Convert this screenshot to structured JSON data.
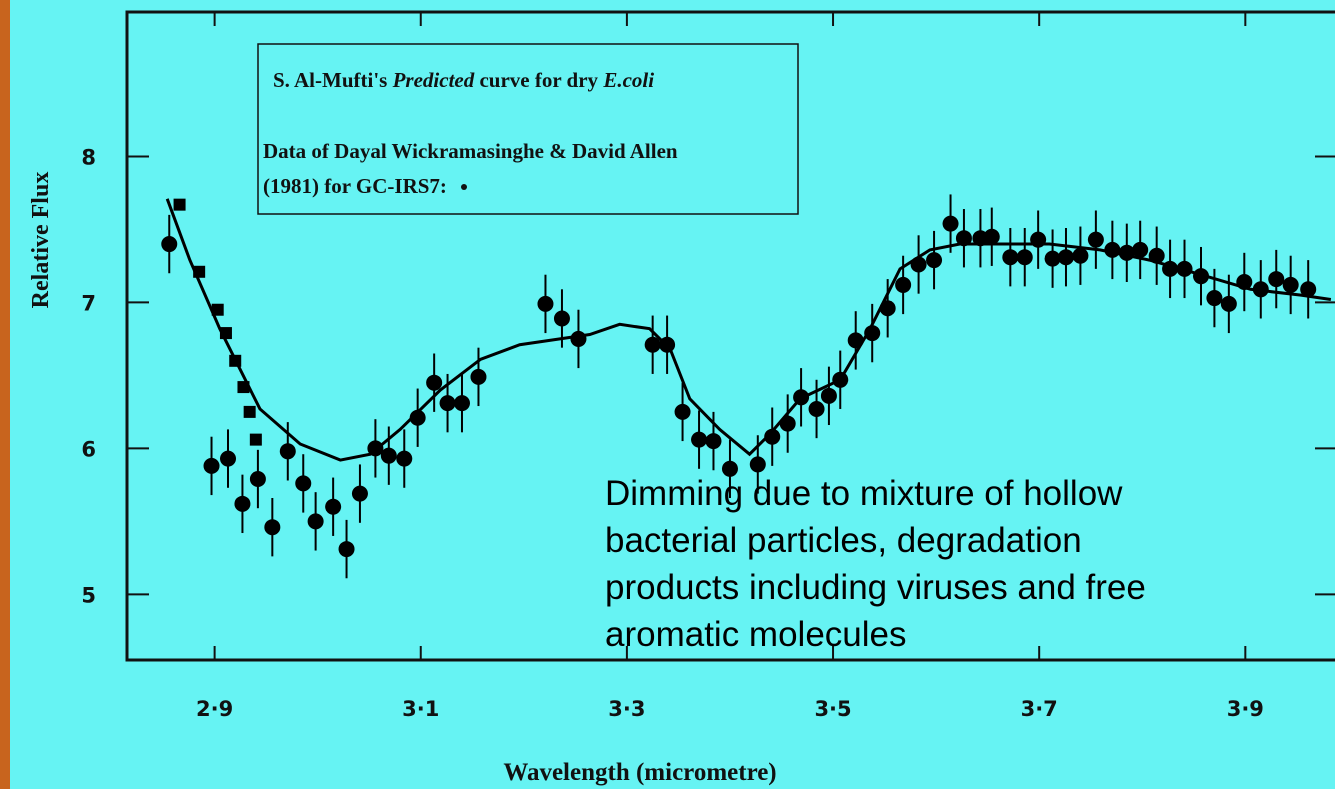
{
  "chart_data": {
    "type": "scatter",
    "xlabel": "Wavelength (micrometre)",
    "ylabel": "Relative Flux",
    "xlim": [
      2.815,
      3.987
    ],
    "ylim": [
      4.55,
      8.99
    ],
    "xticks": [
      {
        "value": 2.9,
        "label": "2·9"
      },
      {
        "value": 3.1,
        "label": "3·1"
      },
      {
        "value": 3.3,
        "label": "3·3"
      },
      {
        "value": 3.5,
        "label": "3·5"
      },
      {
        "value": 3.7,
        "label": "3·7"
      },
      {
        "value": 3.9,
        "label": "3·9"
      }
    ],
    "yticks": [
      5,
      6,
      7,
      8
    ],
    "legend": {
      "curve": [
        "S. Al-Mufti's ",
        "Predicted",
        " curve for dry ",
        "E.coli"
      ],
      "data": [
        "Data of Dayal Wickramasinghe & David Allen",
        "(1981) for GC-IRS7:"
      ]
    },
    "annotation": [
      "Dimming due to mixture of hollow",
      "bacterial particles, degradation",
      "products including viruses and free",
      "aromatic molecules"
    ],
    "series": [
      {
        "type": "line",
        "color": "#000000",
        "x": [
          2.854,
          2.876,
          2.905,
          2.944,
          2.983,
          3.022,
          3.051,
          3.08,
          3.119,
          3.158,
          3.196,
          3.235,
          3.264,
          3.293,
          3.322,
          3.342,
          3.361,
          3.39,
          3.419,
          3.439,
          3.468,
          3.507,
          3.536,
          3.565,
          3.594,
          3.623,
          3.662,
          3.71,
          3.759,
          3.807,
          3.857,
          3.905,
          3.954,
          3.983
        ],
        "values": [
          7.71,
          7.29,
          6.82,
          6.27,
          6.03,
          5.92,
          5.96,
          6.13,
          6.4,
          6.61,
          6.71,
          6.75,
          6.78,
          6.85,
          6.82,
          6.68,
          6.34,
          6.13,
          5.96,
          6.1,
          6.34,
          6.47,
          6.82,
          7.23,
          7.36,
          7.4,
          7.4,
          7.4,
          7.36,
          7.29,
          7.19,
          7.09,
          7.05,
          7.02
        ]
      },
      {
        "type": "scatter",
        "marker": "square",
        "color": "#000000",
        "x": [
          2.866,
          2.885,
          2.903,
          2.911,
          2.92,
          2.928,
          2.934,
          2.94
        ],
        "values": [
          7.67,
          7.21,
          6.95,
          6.79,
          6.6,
          6.42,
          6.25,
          6.06
        ]
      },
      {
        "type": "scatter",
        "marker": "circle",
        "color": "#000000",
        "x": [
          2.856,
          2.897,
          2.913,
          2.927,
          2.942,
          2.956,
          2.971,
          2.986,
          2.998,
          3.015,
          3.028,
          3.041,
          3.056,
          3.069,
          3.084,
          3.097,
          3.113,
          3.126,
          3.14,
          3.156,
          3.221,
          3.237,
          3.253,
          3.325,
          3.339,
          3.354,
          3.37,
          3.384,
          3.4,
          3.427,
          3.441,
          3.456,
          3.469,
          3.484,
          3.496,
          3.507,
          3.522,
          3.538,
          3.553,
          3.568,
          3.583,
          3.598,
          3.614,
          3.627,
          3.643,
          3.654,
          3.672,
          3.686,
          3.699,
          3.713,
          3.726,
          3.74,
          3.755,
          3.771,
          3.785,
          3.798,
          3.814,
          3.827,
          3.841,
          3.857,
          3.87,
          3.884,
          3.899,
          3.915,
          3.93,
          3.944,
          3.961
        ],
        "values": [
          7.4,
          5.88,
          5.93,
          5.62,
          5.79,
          5.46,
          5.98,
          5.76,
          5.5,
          5.6,
          5.31,
          5.69,
          6.0,
          5.95,
          5.93,
          6.21,
          6.45,
          6.31,
          6.31,
          6.49,
          6.99,
          6.89,
          6.75,
          6.71,
          6.71,
          6.25,
          6.06,
          6.05,
          5.86,
          5.89,
          6.08,
          6.17,
          6.35,
          6.27,
          6.36,
          6.47,
          6.74,
          6.79,
          6.96,
          7.12,
          7.26,
          7.29,
          7.54,
          7.44,
          7.44,
          7.45,
          7.31,
          7.31,
          7.43,
          7.3,
          7.31,
          7.32,
          7.43,
          7.36,
          7.34,
          7.36,
          7.32,
          7.23,
          7.23,
          7.18,
          7.03,
          6.99,
          7.14,
          7.09,
          7.16,
          7.12,
          7.09
        ],
        "errors": [
          0.2,
          0.2,
          0.2,
          0.2,
          0.2,
          0.2,
          0.2,
          0.2,
          0.2,
          0.2,
          0.2,
          0.2,
          0.2,
          0.2,
          0.2,
          0.2,
          0.2,
          0.2,
          0.2,
          0.2,
          0.2,
          0.2,
          0.2,
          0.2,
          0.2,
          0.2,
          0.2,
          0.2,
          0.2,
          0.2,
          0.2,
          0.2,
          0.2,
          0.2,
          0.2,
          0.2,
          0.2,
          0.2,
          0.2,
          0.2,
          0.2,
          0.2,
          0.2,
          0.2,
          0.2,
          0.2,
          0.2,
          0.2,
          0.2,
          0.2,
          0.2,
          0.2,
          0.2,
          0.2,
          0.2,
          0.2,
          0.2,
          0.2,
          0.2,
          0.2,
          0.2,
          0.2,
          0.2,
          0.2,
          0.2,
          0.2,
          0.2
        ]
      }
    ]
  }
}
